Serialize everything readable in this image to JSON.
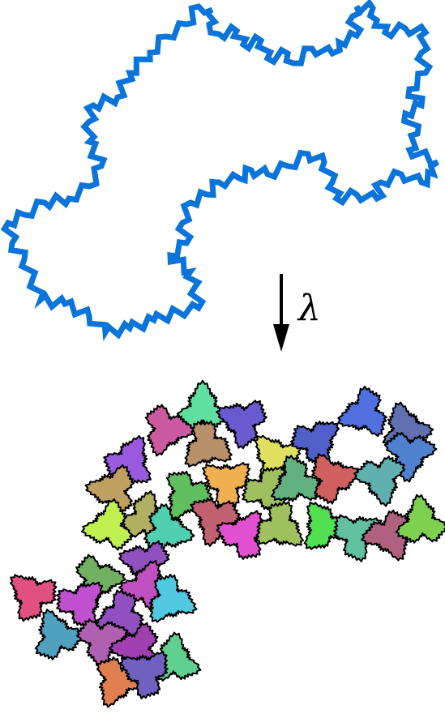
{
  "arrow": {
    "label": "λ"
  }
}
